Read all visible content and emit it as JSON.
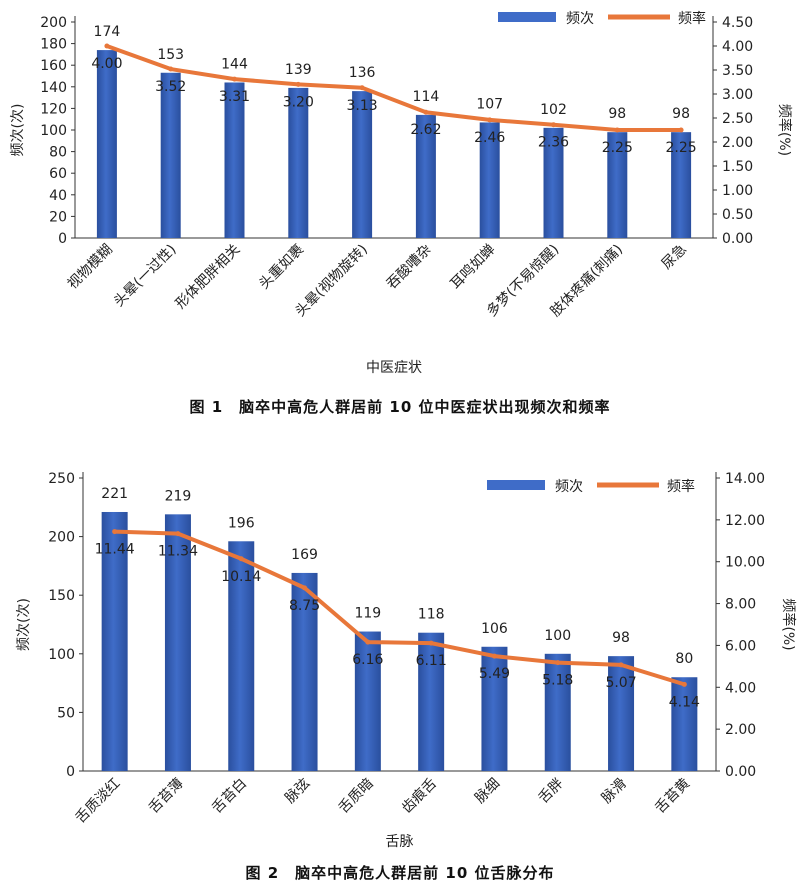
{
  "colors": {
    "bar": "#3f6cc8",
    "bar_dark": "#2a4f9e",
    "line": "#e8773a",
    "axis": "#333333"
  },
  "chart_data": [
    {
      "type": "bar",
      "caption": "图 1　脑卒中高危人群居前 10 位中医症状出现频次和频率",
      "xlabel": "中医症状",
      "ylabel": "频次(次)",
      "y2label": "频率(%)",
      "categories": [
        "视物模糊",
        "头晕(一过性)",
        "形体肥胖相关",
        "头重如裹",
        "头晕(视物旋转)",
        "吞酸嘈杂",
        "耳鸣如蝉",
        "多梦(不易惊醒)",
        "肢体疼痛(刺痛)",
        "尿急"
      ],
      "legend": [
        "频次",
        "频率"
      ],
      "legend_position": "top-right",
      "ylim": [
        0,
        200
      ],
      "y_ticks": [
        "0",
        "20",
        "40",
        "60",
        "80",
        "100",
        "120",
        "140",
        "160",
        "180",
        "200"
      ],
      "y2lim": [
        0,
        4.5
      ],
      "y2_ticks": [
        "0.00",
        "0.50",
        "1.00",
        "1.50",
        "2.00",
        "2.50",
        "3.00",
        "3.50",
        "4.00",
        "4.50"
      ],
      "series": [
        {
          "name": "频次",
          "type": "bar",
          "axis": "left",
          "values": [
            174,
            153,
            144,
            139,
            136,
            114,
            107,
            102,
            98,
            98
          ],
          "labels": [
            "174",
            "153",
            "144",
            "139",
            "136",
            "114",
            "107",
            "102",
            "98",
            "98"
          ]
        },
        {
          "name": "频率",
          "type": "line",
          "axis": "right",
          "values": [
            4.0,
            3.52,
            3.31,
            3.2,
            3.13,
            2.62,
            2.46,
            2.36,
            2.25,
            2.25
          ],
          "labels": [
            "4.00",
            "3.52",
            "3.31",
            "3.20",
            "3.13",
            "2.62",
            "2.46",
            "2.36",
            "2.25",
            "2.25"
          ]
        }
      ]
    },
    {
      "type": "bar",
      "caption": "图 2　脑卒中高危人群居前 10 位舌脉分布",
      "xlabel": "舌脉",
      "ylabel": "频次(次)",
      "y2label": "频率(%)",
      "categories": [
        "舌质淡红",
        "舌苔薄",
        "舌苔白",
        "脉弦",
        "舌质暗",
        "齿痕舌",
        "脉细",
        "舌胖",
        "脉滑",
        "舌苔黄"
      ],
      "legend": [
        "频次",
        "频率"
      ],
      "legend_position": "top-right",
      "ylim": [
        0,
        250
      ],
      "y_ticks": [
        "0",
        "50",
        "100",
        "150",
        "200",
        "250"
      ],
      "y2lim": [
        0,
        14
      ],
      "y2_ticks": [
        "0.00",
        "2.00",
        "4.00",
        "6.00",
        "8.00",
        "10.00",
        "12.00",
        "14.00"
      ],
      "series": [
        {
          "name": "频次",
          "type": "bar",
          "axis": "left",
          "values": [
            221,
            219,
            196,
            169,
            119,
            118,
            106,
            100,
            98,
            80
          ],
          "labels": [
            "221",
            "219",
            "196",
            "169",
            "119",
            "118",
            "106",
            "100",
            "98",
            "80"
          ]
        },
        {
          "name": "频率",
          "type": "line",
          "axis": "right",
          "values": [
            11.44,
            11.34,
            10.14,
            8.75,
            6.16,
            6.11,
            5.49,
            5.18,
            5.07,
            4.14
          ],
          "labels": [
            "11.44",
            "11.34",
            "10.14",
            "8.75",
            "6.16",
            "6.11",
            "5.49",
            "5.18",
            "5.07",
            "4.14"
          ]
        }
      ]
    }
  ]
}
